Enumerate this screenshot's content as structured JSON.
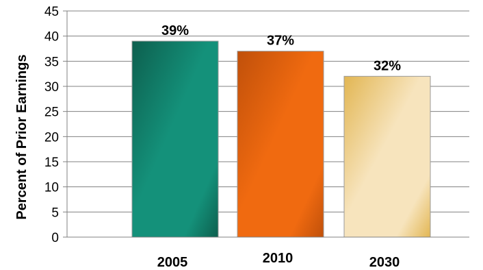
{
  "chart_data": {
    "type": "bar",
    "title": "",
    "xlabel": "",
    "ylabel": "Percent of Prior Earnings",
    "categories": [
      "2005",
      "2010",
      "2030"
    ],
    "values": [
      39,
      37,
      32
    ],
    "data_labels": [
      "39%",
      "37%",
      "32%"
    ],
    "ylim": [
      0,
      45
    ],
    "yticks": [
      0,
      5,
      10,
      15,
      20,
      25,
      30,
      35,
      40,
      45
    ],
    "grid": true,
    "legend": "none",
    "bar_colors": [
      {
        "dark": "#0d5f4e",
        "light": "#14917a"
      },
      {
        "dark": "#c0500a",
        "light": "#f06a10"
      },
      {
        "dark": "#e2b653",
        "light": "#f7e4bd"
      }
    ]
  }
}
